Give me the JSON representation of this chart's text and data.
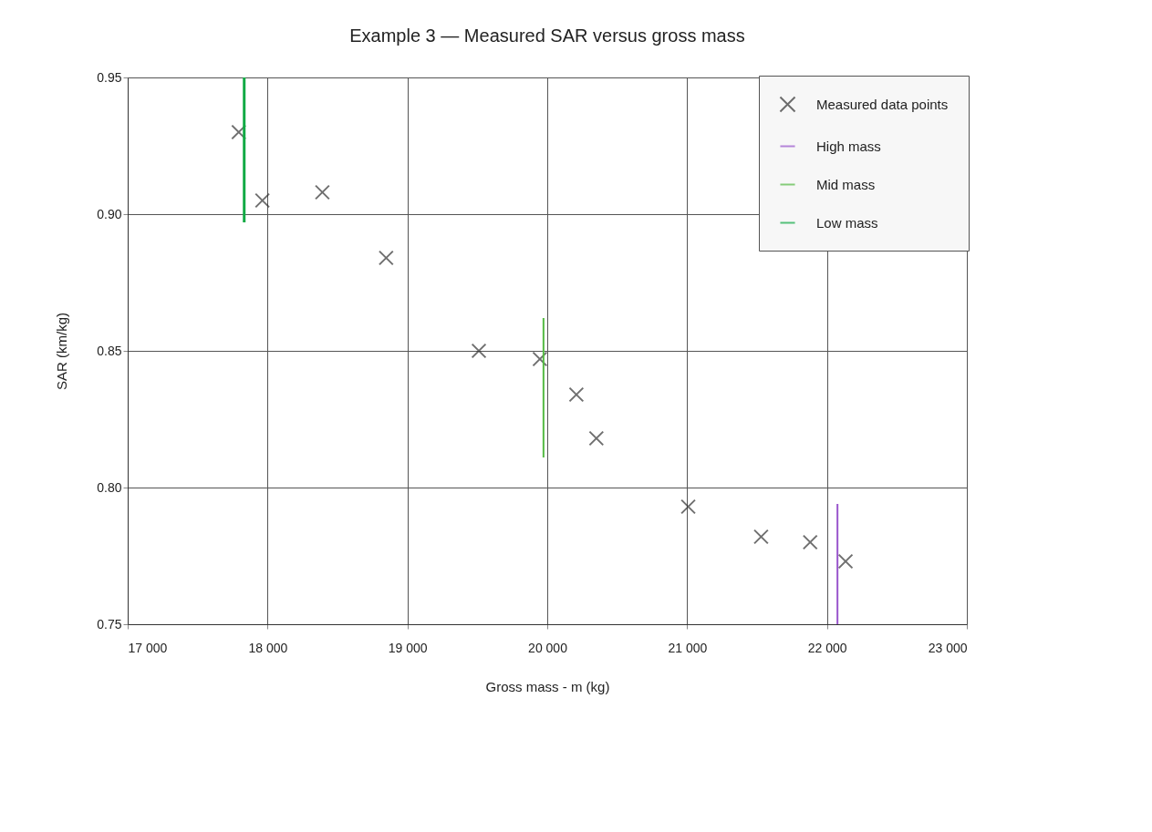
{
  "chart_data": {
    "type": "scatter",
    "title": "Example 3 — Measured SAR versus gross mass",
    "xlabel": "Gross mass - m (kg)",
    "ylabel": "SAR (km/kg)",
    "xlim": [
      17000,
      23000
    ],
    "xticks": [
      {
        "value": 17000,
        "label": "17 000"
      },
      {
        "value": 18000,
        "label": "18 000"
      },
      {
        "value": 19000,
        "label": "19 000"
      },
      {
        "value": 20000,
        "label": "20 000"
      },
      {
        "value": 21000,
        "label": "21 000"
      },
      {
        "value": 22000,
        "label": "22 000"
      },
      {
        "value": 23000,
        "label": "23 000"
      }
    ],
    "ylim": [
      0.75,
      0.95
    ],
    "yticks": [
      {
        "value": 0.75,
        "label": "0.75"
      },
      {
        "value": 0.8,
        "label": "0.80"
      },
      {
        "value": 0.85,
        "label": "0.85"
      },
      {
        "value": 0.9,
        "label": "0.90"
      },
      {
        "value": 0.95,
        "label": "0.95"
      }
    ],
    "grid": true,
    "legend": "top right",
    "series": [
      {
        "name": "Measured data points",
        "marker": "cross",
        "color": "#333333",
        "x": [
          17794,
          17963,
          18392,
          18848,
          19511,
          19947,
          20208,
          20351,
          21008,
          21529,
          21880,
          22133
        ],
        "values": [
          0.93,
          0.905,
          0.908,
          0.884,
          0.85,
          0.847,
          0.834,
          0.818,
          0.793,
          0.782,
          0.78,
          0.773
        ]
      },
      {
        "name": "High mass",
        "type": "line",
        "color": "#9955cc",
        "x": [
          22075,
          22075
        ],
        "values": [
          0.794,
          0.75
        ]
      },
      {
        "name": "Mid mass",
        "type": "line",
        "color": "#55bb44",
        "x": [
          19973,
          19973
        ],
        "values": [
          0.862,
          0.811
        ]
      },
      {
        "name": "Low mass",
        "type": "line",
        "color": "#11aa44",
        "x": [
          17833,
          17833
        ],
        "values": [
          0.95,
          0.897
        ]
      }
    ]
  }
}
